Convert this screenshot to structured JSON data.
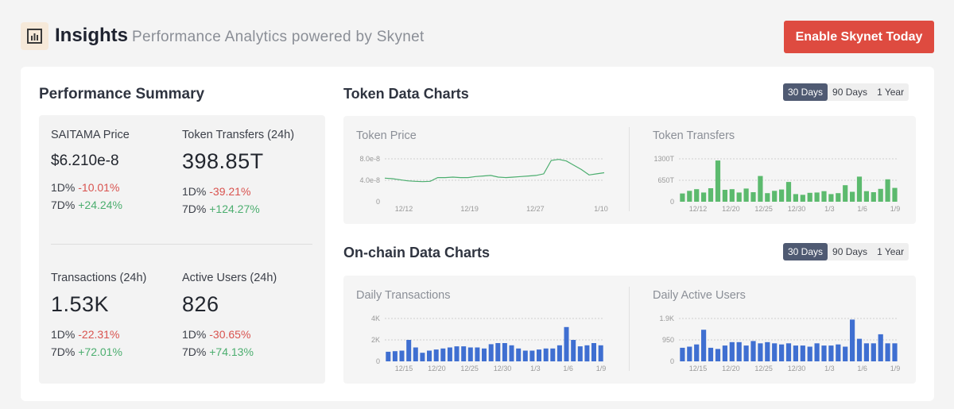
{
  "header": {
    "title": "Insights",
    "subtitle": "Performance Analytics powered by Skynet",
    "cta_label": "Enable Skynet Today",
    "logo_icon": "bar-chart-icon"
  },
  "summary": {
    "title": "Performance Summary",
    "metrics": [
      {
        "label": "SAITAMA Price",
        "value": "$6.210e-8",
        "d1_label": "1D%",
        "d1": "-10.01%",
        "d7_label": "7D%",
        "d7": "+24.24%"
      },
      {
        "label": "Token Transfers (24h)",
        "value": "398.85T",
        "d1_label": "1D%",
        "d1": "-39.21%",
        "d7_label": "7D%",
        "d7": "+124.27%"
      },
      {
        "label": "Transactions (24h)",
        "value": "1.53K",
        "d1_label": "1D%",
        "d1": "-22.31%",
        "d7_label": "7D%",
        "d7": "+72.01%"
      },
      {
        "label": "Active Users (24h)",
        "value": "826",
        "d1_label": "1D%",
        "d1": "-30.65%",
        "d7_label": "7D%",
        "d7": "+74.13%"
      }
    ]
  },
  "token_charts": {
    "title": "Token Data Charts",
    "ranges": [
      "30 Days",
      "90 Days",
      "1 Year"
    ],
    "active_range": "30 Days"
  },
  "onchain_charts": {
    "title": "On-chain Data Charts",
    "ranges": [
      "30 Days",
      "90 Days",
      "1 Year"
    ],
    "active_range": "30 Days"
  },
  "colors": {
    "accent_red": "#de4b40",
    "negative": "#d9534f",
    "positive": "#4cae6f",
    "line_green": "#4cae6f",
    "bar_green": "#5cba6e",
    "bar_blue": "#3f6fd1"
  },
  "chart_data": [
    {
      "type": "line",
      "title": "Token Price",
      "y_ticks": [
        "8.0e-8",
        "4.0e-8",
        "0"
      ],
      "ylim": [
        0,
        8e-08
      ],
      "x_ticks": [
        "12/12",
        "12/19",
        "12/27",
        "1/10"
      ],
      "values": [
        4.4e-08,
        4.3e-08,
        4.1e-08,
        3.9e-08,
        3.8e-08,
        3.75e-08,
        3.8e-08,
        4.5e-08,
        4.5e-08,
        4.6e-08,
        4.5e-08,
        4.5e-08,
        4.7e-08,
        4.8e-08,
        4.9e-08,
        4.6e-08,
        4.5e-08,
        4.6e-08,
        4.7e-08,
        4.8e-08,
        4.9e-08,
        5.2e-08,
        7.7e-08,
        7.9e-08,
        7.6e-08,
        6.8e-08,
        6e-08,
        5e-08,
        5.2e-08,
        5.4e-08
      ],
      "color": "#4cae6f"
    },
    {
      "type": "bar",
      "title": "Token Transfers",
      "y_ticks": [
        "1300T",
        "650T",
        "0"
      ],
      "ylim": [
        0,
        1300
      ],
      "x_ticks": [
        "12/12",
        "12/20",
        "12/25",
        "12/30",
        "1/3",
        "1/6",
        "1/9"
      ],
      "values": [
        250,
        330,
        380,
        280,
        410,
        1250,
        360,
        380,
        280,
        400,
        290,
        780,
        260,
        330,
        370,
        600,
        230,
        210,
        270,
        280,
        320,
        230,
        260,
        500,
        300,
        760,
        320,
        290,
        390,
        680,
        420
      ],
      "color": "#5cba6e"
    },
    {
      "type": "bar",
      "title": "Daily Transactions",
      "y_ticks": [
        "4K",
        "2K",
        "0"
      ],
      "ylim": [
        0,
        4000
      ],
      "x_ticks": [
        "12/15",
        "12/20",
        "12/25",
        "12/30",
        "1/3",
        "1/6",
        "1/9"
      ],
      "values": [
        900,
        950,
        1000,
        2000,
        1300,
        800,
        1000,
        1100,
        1200,
        1300,
        1400,
        1400,
        1300,
        1300,
        1200,
        1600,
        1700,
        1700,
        1500,
        1200,
        1000,
        1000,
        1100,
        1200,
        1200,
        1500,
        3200,
        2000,
        1400,
        1500,
        1700,
        1500
      ],
      "color": "#3f6fd1"
    },
    {
      "type": "bar",
      "title": "Daily Active Users",
      "y_ticks": [
        "1.9K",
        "950",
        "0"
      ],
      "ylim": [
        0,
        1900
      ],
      "x_ticks": [
        "12/15",
        "12/20",
        "12/25",
        "12/30",
        "1/3",
        "1/6",
        "1/9"
      ],
      "values": [
        600,
        650,
        750,
        1400,
        600,
        550,
        700,
        850,
        850,
        700,
        900,
        800,
        850,
        800,
        750,
        800,
        700,
        700,
        650,
        800,
        700,
        700,
        750,
        650,
        1850,
        1000,
        800,
        800,
        1200,
        800,
        800
      ],
      "color": "#3f6fd1"
    }
  ]
}
